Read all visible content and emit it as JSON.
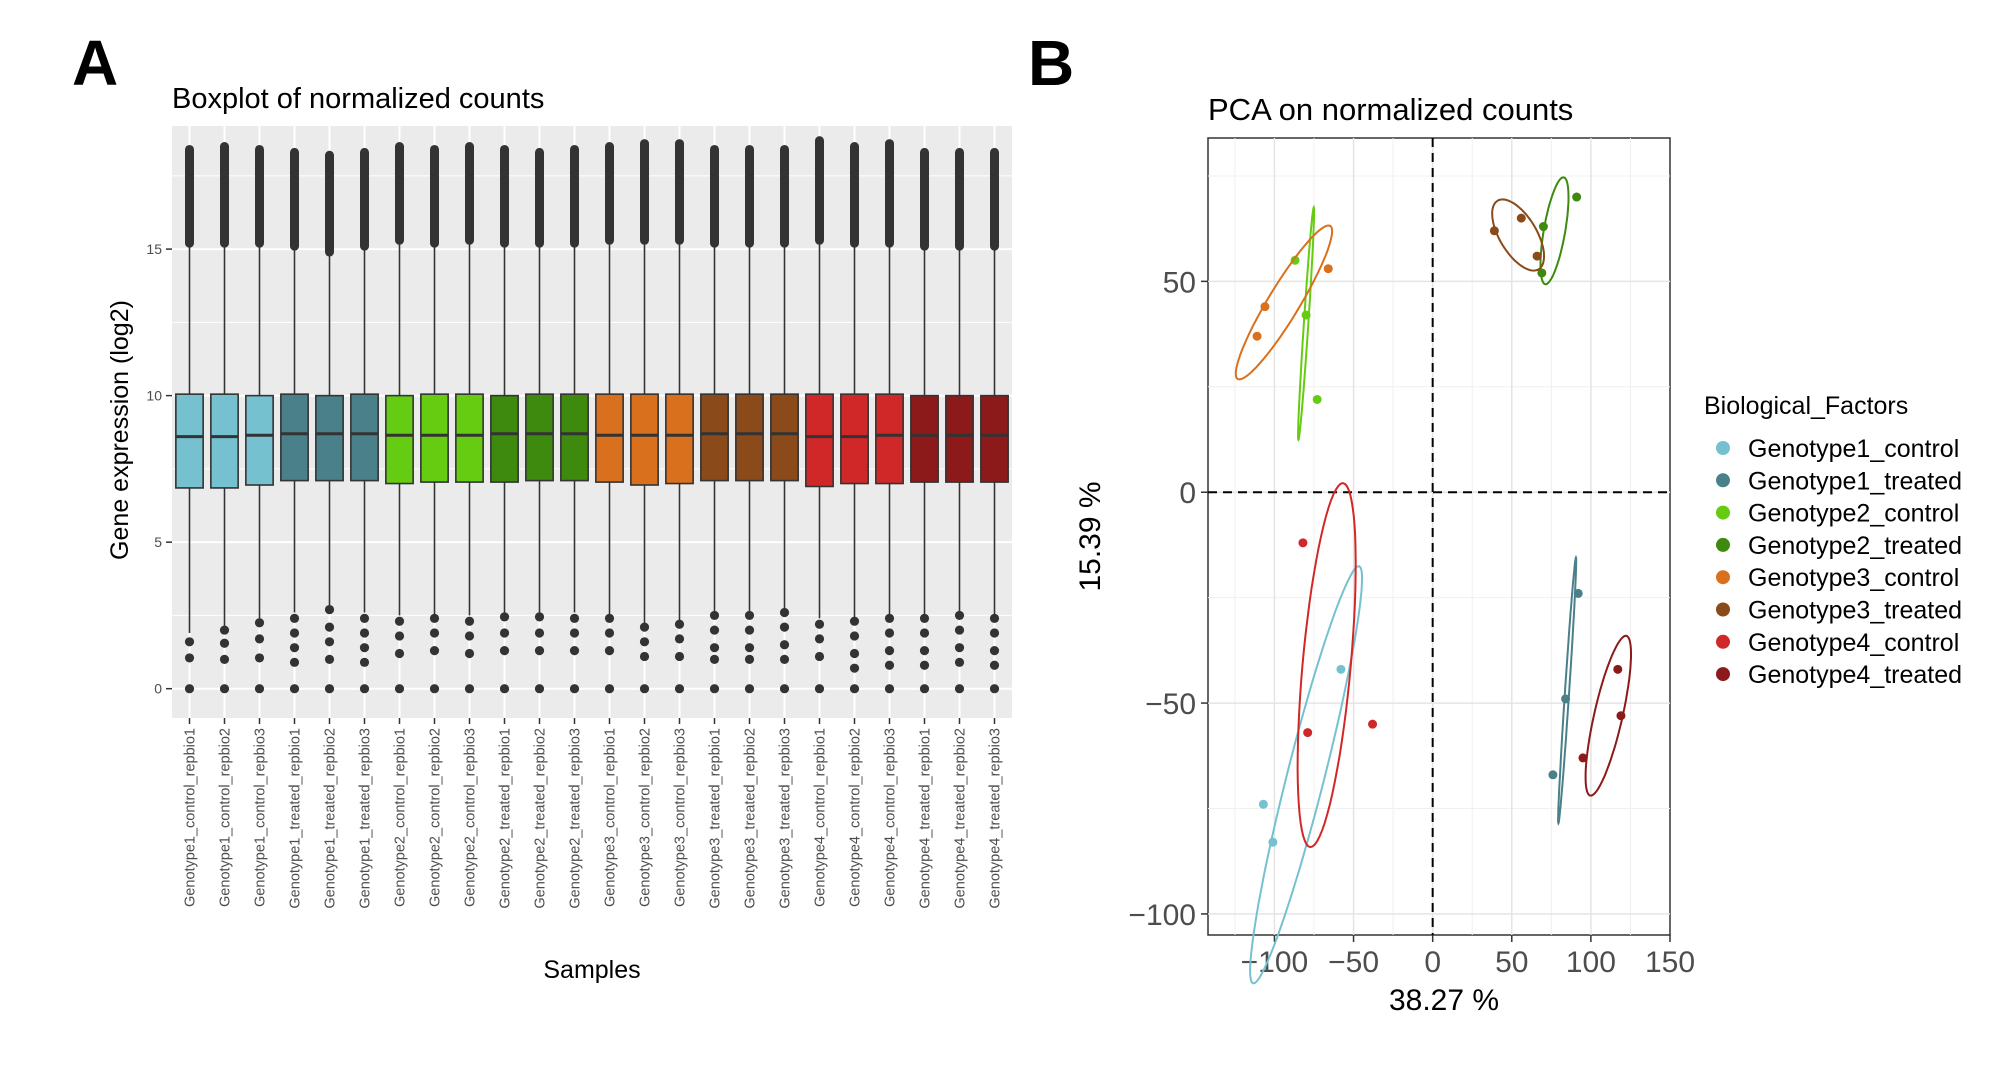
{
  "panel_labels": {
    "a": "A",
    "b": "B"
  },
  "chart_data": [
    {
      "type": "boxplot",
      "title": "Boxplot of normalized counts",
      "xlabel": "Samples",
      "ylabel": "Gene expression (log2)",
      "ylim": [
        -1.0,
        19.2
      ],
      "yticks": [
        0,
        5,
        10,
        15
      ],
      "grid": true,
      "samples": [
        {
          "name": "Genotype1_control_repbio1",
          "color": "#76c1cf",
          "q1": 6.85,
          "median": 8.6,
          "q3": 10.05,
          "whisker_low": 1.9,
          "whisker_high": 15.2,
          "max": 18.4,
          "low_outliers": [
            1.6,
            1.05,
            0.0
          ]
        },
        {
          "name": "Genotype1_control_repbio2",
          "color": "#76c1cf",
          "q1": 6.85,
          "median": 8.6,
          "q3": 10.05,
          "whisker_low": 2.1,
          "whisker_high": 15.2,
          "max": 18.5,
          "low_outliers": [
            2.0,
            1.55,
            1.0,
            0.0
          ]
        },
        {
          "name": "Genotype1_control_repbio3",
          "color": "#76c1cf",
          "q1": 6.95,
          "median": 8.65,
          "q3": 10.0,
          "whisker_low": 2.4,
          "whisker_high": 15.2,
          "max": 18.4,
          "low_outliers": [
            2.25,
            1.7,
            1.05,
            0.0
          ]
        },
        {
          "name": "Genotype1_treated_repbio1",
          "color": "#4a8089",
          "q1": 7.1,
          "median": 8.7,
          "q3": 10.05,
          "whisker_low": 2.6,
          "whisker_high": 15.1,
          "max": 18.3,
          "low_outliers": [
            2.4,
            1.9,
            1.4,
            0.9,
            0.0
          ]
        },
        {
          "name": "Genotype1_treated_repbio2",
          "color": "#4a8089",
          "q1": 7.1,
          "median": 8.7,
          "q3": 10.0,
          "whisker_low": 2.8,
          "whisker_high": 14.9,
          "max": 18.2,
          "low_outliers": [
            2.7,
            2.1,
            1.6,
            1.0,
            0.0
          ]
        },
        {
          "name": "Genotype1_treated_repbio3",
          "color": "#4a8089",
          "q1": 7.1,
          "median": 8.7,
          "q3": 10.05,
          "whisker_low": 2.6,
          "whisker_high": 15.1,
          "max": 18.3,
          "low_outliers": [
            2.4,
            1.9,
            1.4,
            0.9,
            0.0
          ]
        },
        {
          "name": "Genotype2_control_repbio1",
          "color": "#66cc11",
          "q1": 7.0,
          "median": 8.65,
          "q3": 10.0,
          "whisker_low": 2.5,
          "whisker_high": 15.3,
          "max": 18.5,
          "low_outliers": [
            2.3,
            1.8,
            1.2,
            0.0
          ]
        },
        {
          "name": "Genotype2_control_repbio2",
          "color": "#66cc11",
          "q1": 7.05,
          "median": 8.65,
          "q3": 10.05,
          "whisker_low": 2.5,
          "whisker_high": 15.2,
          "max": 18.4,
          "low_outliers": [
            2.4,
            1.9,
            1.3,
            0.0
          ]
        },
        {
          "name": "Genotype2_control_repbio3",
          "color": "#66cc11",
          "q1": 7.05,
          "median": 8.65,
          "q3": 10.05,
          "whisker_low": 2.5,
          "whisker_high": 15.3,
          "max": 18.5,
          "low_outliers": [
            2.3,
            1.8,
            1.2,
            0.0
          ]
        },
        {
          "name": "Genotype2_treated_repbio1",
          "color": "#3d8a0e",
          "q1": 7.05,
          "median": 8.7,
          "q3": 10.0,
          "whisker_low": 2.6,
          "whisker_high": 15.2,
          "max": 18.4,
          "low_outliers": [
            2.45,
            1.9,
            1.3,
            0.0
          ]
        },
        {
          "name": "Genotype2_treated_repbio2",
          "color": "#3d8a0e",
          "q1": 7.1,
          "median": 8.7,
          "q3": 10.05,
          "whisker_low": 2.6,
          "whisker_high": 15.2,
          "max": 18.3,
          "low_outliers": [
            2.45,
            1.9,
            1.3,
            0.0
          ]
        },
        {
          "name": "Genotype2_treated_repbio3",
          "color": "#3d8a0e",
          "q1": 7.1,
          "median": 8.7,
          "q3": 10.05,
          "whisker_low": 2.6,
          "whisker_high": 15.2,
          "max": 18.4,
          "low_outliers": [
            2.4,
            1.9,
            1.3,
            0.0
          ]
        },
        {
          "name": "Genotype3_control_repbio1",
          "color": "#d9701e",
          "q1": 7.05,
          "median": 8.65,
          "q3": 10.05,
          "whisker_low": 2.5,
          "whisker_high": 15.3,
          "max": 18.5,
          "low_outliers": [
            2.4,
            1.9,
            1.3,
            0.0
          ]
        },
        {
          "name": "Genotype3_control_repbio2",
          "color": "#d9701e",
          "q1": 6.95,
          "median": 8.65,
          "q3": 10.05,
          "whisker_low": 2.2,
          "whisker_high": 15.3,
          "max": 18.6,
          "low_outliers": [
            2.1,
            1.6,
            1.1,
            0.0
          ]
        },
        {
          "name": "Genotype3_control_repbio3",
          "color": "#d9701e",
          "q1": 7.0,
          "median": 8.65,
          "q3": 10.05,
          "whisker_low": 2.3,
          "whisker_high": 15.3,
          "max": 18.6,
          "low_outliers": [
            2.2,
            1.7,
            1.1,
            0.0
          ]
        },
        {
          "name": "Genotype3_treated_repbio1",
          "color": "#8a4a1a",
          "q1": 7.1,
          "median": 8.7,
          "q3": 10.05,
          "whisker_low": 2.6,
          "whisker_high": 15.2,
          "max": 18.4,
          "low_outliers": [
            2.5,
            2.0,
            1.4,
            1.0,
            0.0
          ]
        },
        {
          "name": "Genotype3_treated_repbio2",
          "color": "#8a4a1a",
          "q1": 7.1,
          "median": 8.7,
          "q3": 10.05,
          "whisker_low": 2.6,
          "whisker_high": 15.2,
          "max": 18.4,
          "low_outliers": [
            2.5,
            2.0,
            1.4,
            1.0,
            0.0
          ]
        },
        {
          "name": "Genotype3_treated_repbio3",
          "color": "#8a4a1a",
          "q1": 7.1,
          "median": 8.7,
          "q3": 10.05,
          "whisker_low": 2.7,
          "whisker_high": 15.2,
          "max": 18.4,
          "low_outliers": [
            2.6,
            2.1,
            1.5,
            1.0,
            0.0
          ]
        },
        {
          "name": "Genotype4_control_repbio1",
          "color": "#d02828",
          "q1": 6.9,
          "median": 8.6,
          "q3": 10.05,
          "whisker_low": 2.4,
          "whisker_high": 15.3,
          "max": 18.7,
          "low_outliers": [
            2.2,
            1.7,
            1.1,
            0.0
          ]
        },
        {
          "name": "Genotype4_control_repbio2",
          "color": "#d02828",
          "q1": 7.0,
          "median": 8.6,
          "q3": 10.05,
          "whisker_low": 2.4,
          "whisker_high": 15.2,
          "max": 18.5,
          "low_outliers": [
            2.3,
            1.8,
            1.2,
            0.7,
            0.0
          ]
        },
        {
          "name": "Genotype4_control_repbio3",
          "color": "#d02828",
          "q1": 7.0,
          "median": 8.65,
          "q3": 10.05,
          "whisker_low": 2.5,
          "whisker_high": 15.2,
          "max": 18.6,
          "low_outliers": [
            2.4,
            1.9,
            1.3,
            0.8,
            0.0
          ]
        },
        {
          "name": "Genotype4_treated_repbio1",
          "color": "#8c1a1a",
          "q1": 7.05,
          "median": 8.65,
          "q3": 10.0,
          "whisker_low": 2.5,
          "whisker_high": 15.1,
          "max": 18.3,
          "low_outliers": [
            2.4,
            1.9,
            1.3,
            0.8,
            0.0
          ]
        },
        {
          "name": "Genotype4_treated_repbio2",
          "color": "#8c1a1a",
          "q1": 7.05,
          "median": 8.65,
          "q3": 10.0,
          "whisker_low": 2.6,
          "whisker_high": 15.1,
          "max": 18.3,
          "low_outliers": [
            2.5,
            2.0,
            1.4,
            0.9,
            0.0
          ]
        },
        {
          "name": "Genotype4_treated_repbio3",
          "color": "#8c1a1a",
          "q1": 7.05,
          "median": 8.65,
          "q3": 10.0,
          "whisker_low": 2.5,
          "whisker_high": 15.1,
          "max": 18.3,
          "low_outliers": [
            2.4,
            1.9,
            1.3,
            0.8,
            0.0
          ]
        }
      ]
    },
    {
      "type": "scatter",
      "title": "PCA on normalized counts",
      "xlabel": "38.27 %",
      "ylabel": "15.39 %",
      "xlim": [
        -142,
        150
      ],
      "ylim": [
        -105,
        84
      ],
      "xticks": [
        -100,
        -50,
        0,
        50,
        100,
        150
      ],
      "yticks": [
        -100,
        -50,
        0,
        50
      ],
      "tick_labels_x": [
        "−100",
        "−50",
        "0",
        "50",
        "100",
        "150"
      ],
      "tick_labels_y": [
        "−100",
        "−50",
        "0",
        "50"
      ],
      "reference_lines": {
        "x": 0,
        "y": 0,
        "style": "dashed"
      },
      "legend_title": "Biological_Factors",
      "legend_position": "right",
      "series": [
        {
          "name": "Genotype1_control",
          "color": "#76c1cf",
          "points": [
            [
              -58,
              -42
            ],
            [
              -107,
              -74
            ],
            [
              -101,
              -83
            ]
          ],
          "ellipse": {
            "cx": -80,
            "cy": -67,
            "rx": 60,
            "ry": 10,
            "angle": 55
          }
        },
        {
          "name": "Genotype1_treated",
          "color": "#4a8089",
          "points": [
            [
              92,
              -24
            ],
            [
              84,
              -49
            ],
            [
              76,
              -67
            ]
          ],
          "ellipse": {
            "cx": 85,
            "cy": -47,
            "rx": 32,
            "ry": 1.3,
            "angle": 80
          }
        },
        {
          "name": "Genotype2_control",
          "color": "#66cc11",
          "points": [
            [
              -87,
              55
            ],
            [
              -80,
              42
            ],
            [
              -73,
              22
            ]
          ],
          "ellipse": {
            "cx": -80,
            "cy": 40,
            "rx": 28,
            "ry": 1.4,
            "angle": 80
          }
        },
        {
          "name": "Genotype2_treated",
          "color": "#3d8a0e",
          "points": [
            [
              91,
              70
            ],
            [
              70,
              63
            ],
            [
              69,
              52
            ]
          ],
          "ellipse": {
            "cx": 77,
            "cy": 62,
            "rx": 14.2,
            "ry": 6.1,
            "angle": 60
          }
        },
        {
          "name": "Genotype3_control",
          "color": "#d9701e",
          "points": [
            [
              -106,
              44
            ],
            [
              -111,
              37
            ],
            [
              -66,
              53
            ]
          ],
          "ellipse": {
            "cx": -94,
            "cy": 45,
            "rx": 35,
            "ry": 6.0,
            "angle": 30
          }
        },
        {
          "name": "Genotype3_treated",
          "color": "#8a4a1a",
          "points": [
            [
              39,
              62
            ],
            [
              56,
              65
            ],
            [
              66,
              56
            ]
          ],
          "ellipse": {
            "cx": 54,
            "cy": 61,
            "rx": 17.3,
            "ry": 6.4,
            "angle": -20
          }
        },
        {
          "name": "Genotype4_control",
          "color": "#d02828",
          "points": [
            [
              -82,
              -12
            ],
            [
              -79,
              -57
            ],
            [
              -38,
              -55
            ]
          ],
          "ellipse": {
            "cx": -67,
            "cy": -41,
            "rx": 44.5,
            "ry": 14.8,
            "angle": 75
          }
        },
        {
          "name": "Genotype4_treated",
          "color": "#8c1a1a",
          "points": [
            [
              117,
              -42
            ],
            [
              119,
              -53
            ],
            [
              95,
              -63
            ]
          ],
          "ellipse": {
            "cx": 111,
            "cy": -53,
            "rx": 22.5,
            "ry": 7.7,
            "angle": 55
          }
        }
      ]
    }
  ]
}
